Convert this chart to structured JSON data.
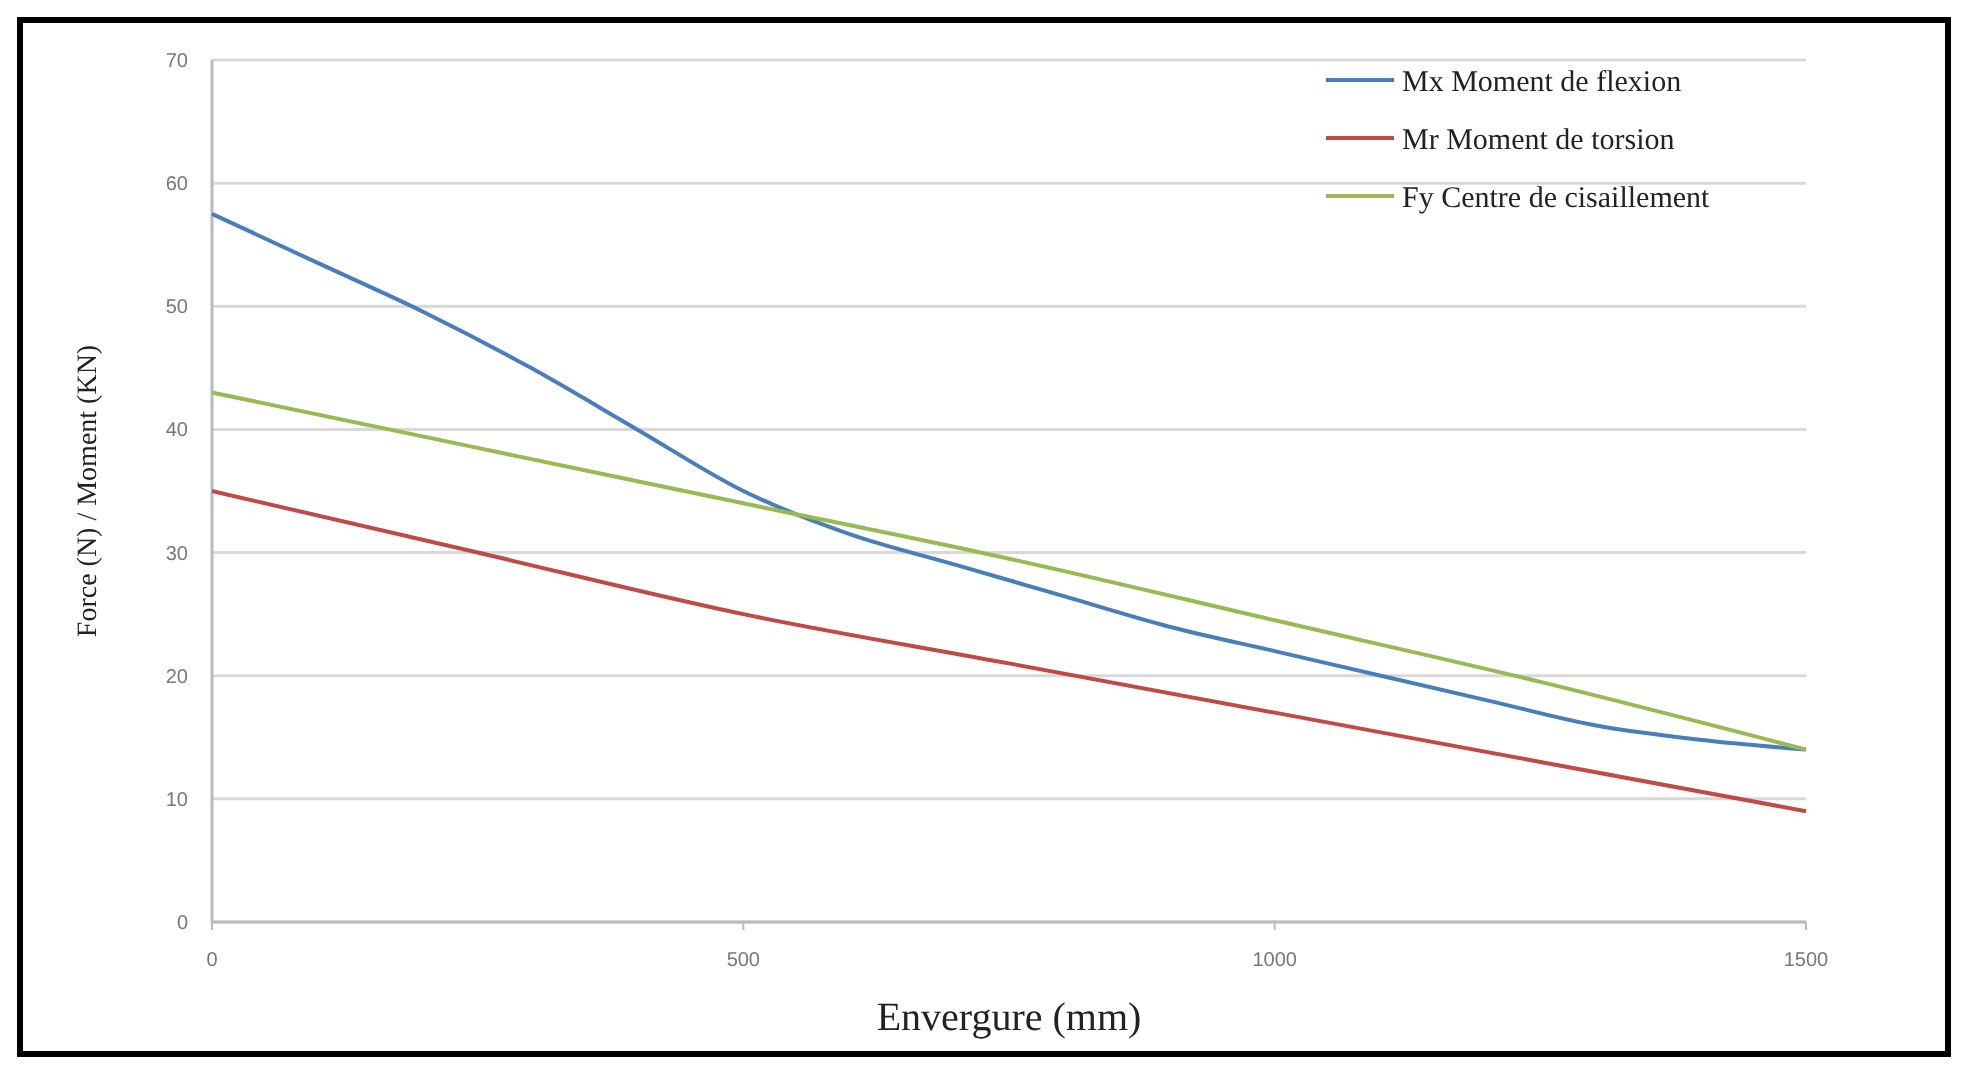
{
  "chart_data": {
    "type": "line",
    "xlabel": "Envergure  (mm)",
    "ylabel": "Force (N) / Moment (KN)",
    "xlim": [
      0,
      1500
    ],
    "xticks": [
      0,
      500,
      1000,
      1500
    ],
    "ylim": [
      0,
      70
    ],
    "yticks": [
      0,
      10,
      20,
      30,
      40,
      50,
      60,
      70
    ],
    "grid": "y",
    "legend": "top right",
    "marker": "none",
    "line_style": "solid",
    "series": [
      {
        "name": "Mx Moment de flexion",
        "color": "#4a7ebb",
        "x": [
          0,
          100,
          200,
          300,
          400,
          500,
          600,
          700,
          800,
          900,
          1000,
          1100,
          1200,
          1300,
          1400,
          1500
        ],
        "values": [
          57.5,
          53.5,
          49.5,
          45,
          40,
          35,
          31.5,
          29,
          26.5,
          24,
          22,
          20,
          18,
          16,
          14.8,
          14
        ]
      },
      {
        "name": "Mr Moment de torsion",
        "color": "#be4b48",
        "x": [
          0,
          250,
          500,
          750,
          1000,
          1250,
          1500
        ],
        "values": [
          35,
          30,
          25,
          21,
          17,
          13,
          9
        ]
      },
      {
        "name": "Fy Centre de cisaillement",
        "color": "#98b954",
        "x": [
          0,
          250,
          500,
          750,
          1000,
          1250,
          1500
        ],
        "values": [
          43,
          38.5,
          34,
          29.5,
          24.5,
          19.5,
          14
        ]
      }
    ]
  }
}
